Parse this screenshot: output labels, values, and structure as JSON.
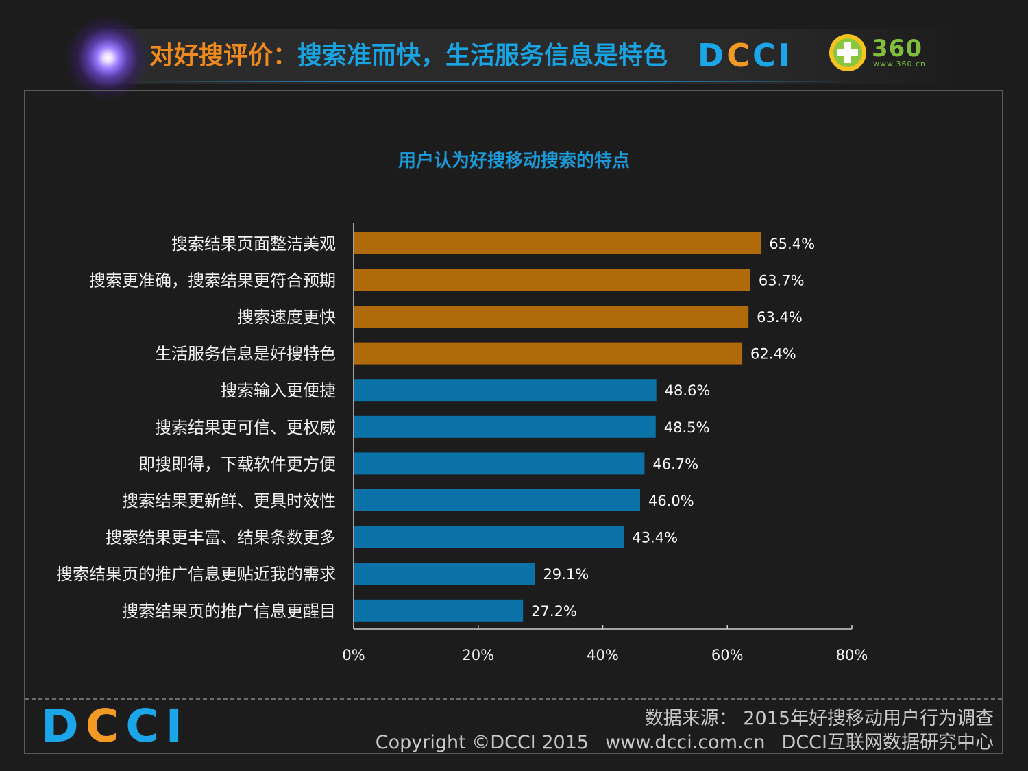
{
  "header": {
    "title_part1": "对好搜评价：",
    "title_part2": "搜索准而快，生活服务信息是特色",
    "logo_dcci": "DCCI",
    "logo_360": "360",
    "logo_360_url": "www.360.cn"
  },
  "chart_data": {
    "type": "bar",
    "orientation": "horizontal",
    "title": "用户认为好搜移动搜索的特点",
    "categories": [
      "搜索结果页面整洁美观",
      "搜索更准确，搜索结果更符合预期",
      "搜索速度更快",
      "生活服务信息是好搜特色",
      "搜索输入更便捷",
      "搜索结果更可信、更权威",
      "即搜即得，下载软件更方便",
      "搜索结果更新鲜、更具时效性",
      "搜索结果更丰富、结果条数更多",
      "搜索结果页的推广信息更贴近我的需求",
      "搜索结果页的推广信息更醒目"
    ],
    "values": [
      65.4,
      63.7,
      63.4,
      62.4,
      48.6,
      48.5,
      46.7,
      46.0,
      43.4,
      29.1,
      27.2
    ],
    "value_labels": [
      "65.4%",
      "63.7%",
      "63.4%",
      "62.4%",
      "48.6%",
      "48.5%",
      "46.7%",
      "46.0%",
      "43.4%",
      "29.1%",
      "27.2%"
    ],
    "highlight_count": 4,
    "colors": {
      "highlight": "#b06a0a",
      "normal": "#0a72a6",
      "axis": "#d0d0d0",
      "label": "#ffffff"
    },
    "xlim": [
      0,
      80
    ],
    "xticks": [
      0,
      20,
      40,
      60,
      80
    ],
    "xtick_labels": [
      "0%",
      "20%",
      "40%",
      "60%",
      "80%"
    ],
    "xlabel": "",
    "ylabel": ""
  },
  "footer": {
    "logo": "DCCI",
    "source": "数据来源： 2015年好搜移动用户行为调查",
    "copyright": "Copyright ©DCCI 2015",
    "website": "www.dcci.com.cn",
    "org": "DCCI互联网数据研究中心"
  },
  "colors": {
    "background": "#1c1c1c",
    "accent_blue": "#1aa6e8",
    "accent_orange": "#f39a24",
    "green_360": "#7fbf3c"
  }
}
